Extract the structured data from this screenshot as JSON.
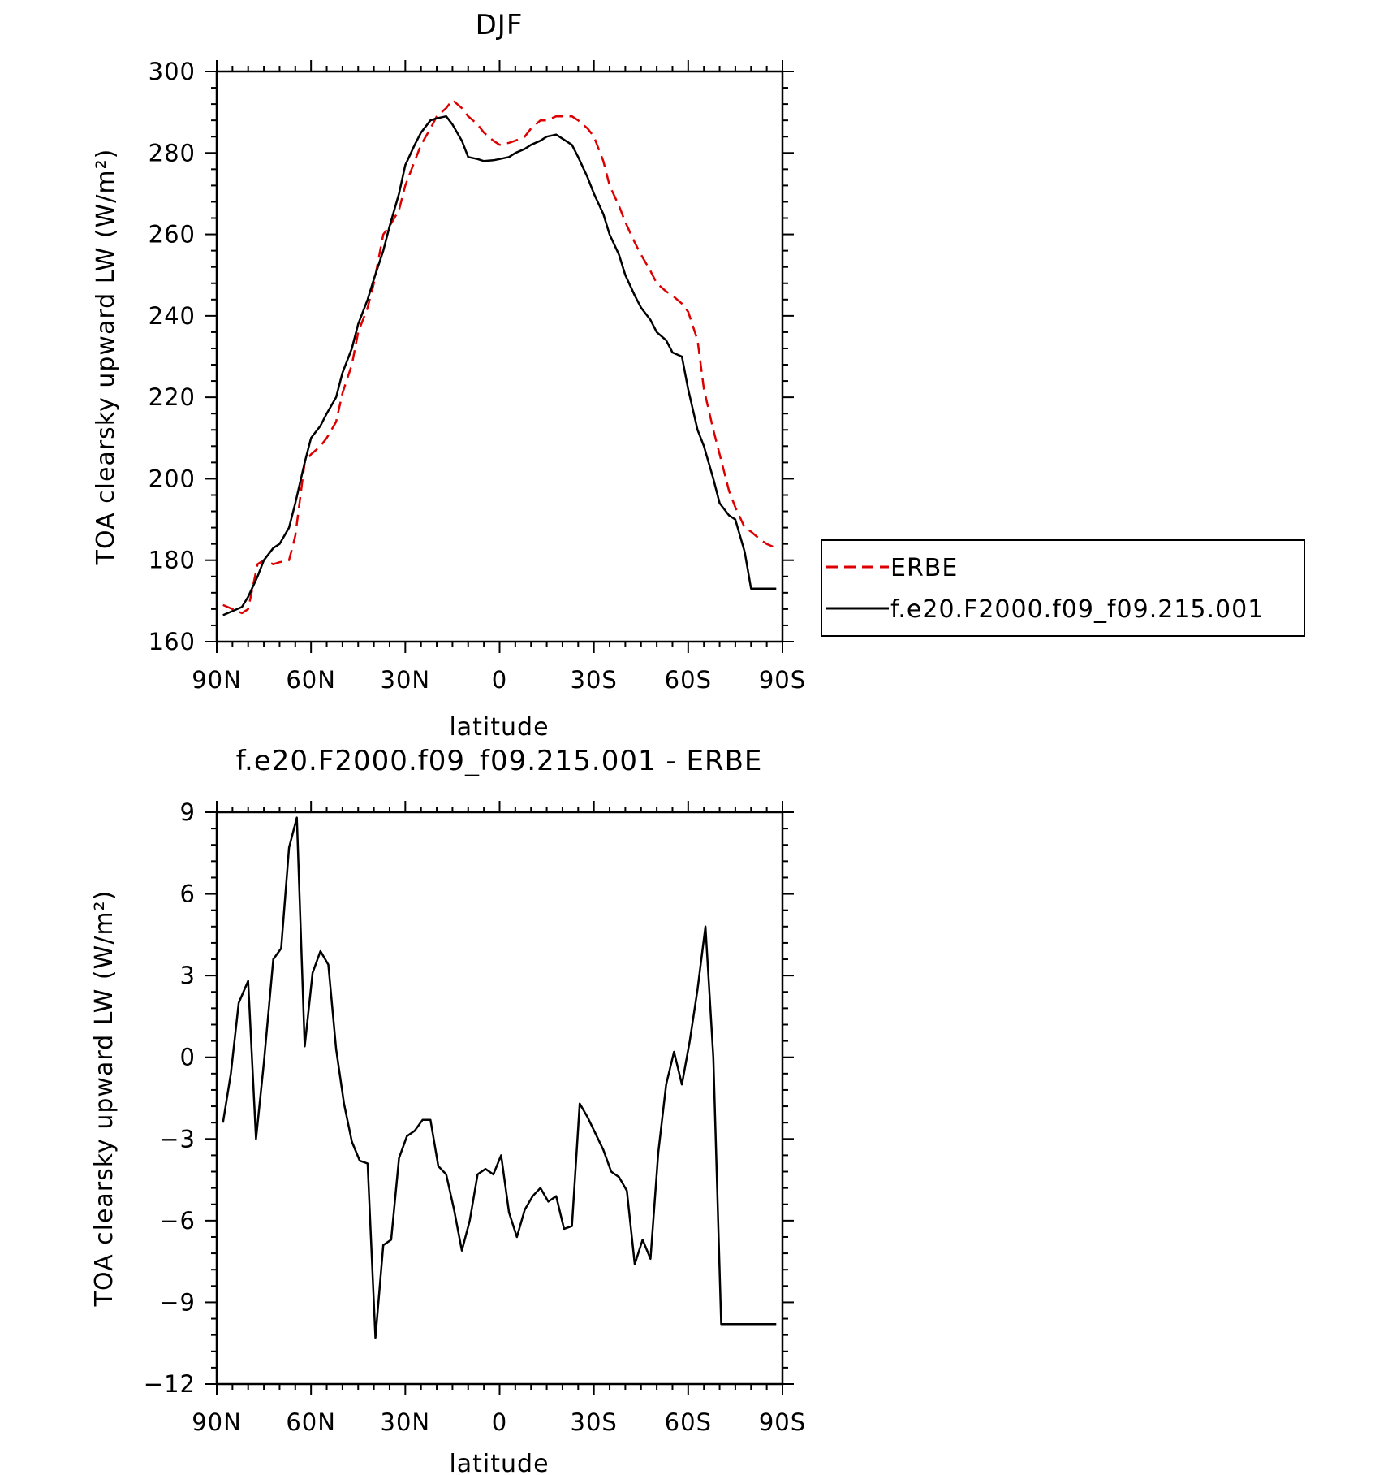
{
  "chart_data": [
    {
      "type": "line",
      "title": "DJF",
      "xlabel": "latitude",
      "ylabel": "TOA clearsky upward LW (W/m²)",
      "xlim": [
        90,
        -90
      ],
      "ylim": [
        160,
        300
      ],
      "xticks": [
        90,
        60,
        30,
        0,
        -30,
        -60,
        -90
      ],
      "xtick_labels": [
        "90N",
        "60N",
        "30N",
        "0",
        "30S",
        "60S",
        "90S"
      ],
      "yticks": [
        160,
        180,
        200,
        220,
        240,
        260,
        280,
        300
      ],
      "ytick_labels": [
        "160",
        "180",
        "200",
        "220",
        "240",
        "260",
        "280",
        "300"
      ],
      "legend_position": "right",
      "series": [
        {
          "name": "ERBE",
          "style": "dashed",
          "color": "#dd0000",
          "x": [
            88,
            85,
            82,
            80,
            77,
            75,
            72,
            70,
            67,
            65,
            62,
            60,
            57,
            55,
            52,
            50,
            47,
            45,
            42,
            40,
            37,
            35,
            32,
            30,
            27,
            25,
            22,
            20,
            17,
            15,
            12,
            10,
            7,
            5,
            2,
            0,
            -3,
            -5,
            -8,
            -10,
            -13,
            -15,
            -18,
            -20,
            -23,
            -25,
            -28,
            -30,
            -33,
            -35,
            -38,
            -40,
            -43,
            -45,
            -48,
            -50,
            -53,
            -55,
            -58,
            -60,
            -63,
            -65,
            -68,
            -70,
            -73,
            -75,
            -78,
            -80,
            -83,
            -85,
            -88
          ],
          "y": [
            169,
            168,
            167,
            168,
            179,
            180,
            179,
            179.5,
            180,
            186,
            204,
            206,
            208,
            210,
            214,
            221,
            228,
            236,
            242,
            248,
            260,
            262,
            266,
            272,
            278,
            282,
            286,
            289,
            291,
            293,
            291,
            289,
            287,
            285,
            283,
            282,
            282.5,
            283,
            284,
            286,
            288,
            288,
            289,
            289,
            289,
            288,
            286,
            284,
            278,
            272,
            267,
            263,
            258,
            255,
            251,
            248,
            246,
            245,
            243,
            241,
            234,
            222,
            212,
            206,
            197,
            193,
            188,
            187,
            185,
            184,
            183
          ]
        },
        {
          "name": "f.e20.F2000.f09_f09.215.001",
          "style": "solid",
          "color": "#000000",
          "x": [
            88,
            85,
            82,
            80,
            77,
            75,
            72,
            70,
            67,
            65,
            62,
            60,
            57,
            55,
            52,
            50,
            47,
            45,
            42,
            40,
            37,
            35,
            32,
            30,
            27,
            25,
            22,
            20,
            17,
            15,
            12,
            10,
            7,
            5,
            2,
            0,
            -3,
            -5,
            -8,
            -10,
            -13,
            -15,
            -18,
            -20,
            -23,
            -25,
            -28,
            -30,
            -33,
            -35,
            -38,
            -40,
            -43,
            -45,
            -48,
            -50,
            -53,
            -55,
            -58,
            -60,
            -63,
            -65,
            -68,
            -70,
            -73,
            -75,
            -78,
            -80,
            -83,
            -85,
            -88
          ],
          "y": [
            166.5,
            167.5,
            168.5,
            171,
            176,
            180,
            183,
            184,
            188,
            194,
            204,
            210,
            213,
            216,
            220,
            226,
            232,
            238,
            244,
            249,
            256,
            262,
            270,
            277,
            282,
            285,
            288,
            288.5,
            289,
            287,
            283,
            279,
            278.5,
            278,
            278.2,
            278.5,
            279,
            280,
            281,
            282,
            283,
            284,
            284.5,
            283.5,
            282,
            279,
            274,
            270,
            265,
            260,
            255,
            250,
            245,
            242,
            239,
            236,
            234,
            231,
            230,
            222,
            212,
            208,
            200,
            194,
            191,
            190,
            182,
            173,
            173,
            173,
            173
          ]
        }
      ]
    },
    {
      "type": "line",
      "title": "f.e20.F2000.f09_f09.215.001 - ERBE",
      "xlabel": "latitude",
      "ylabel": "TOA clearsky upward LW (W/m²)",
      "xlim": [
        90,
        -90
      ],
      "ylim": [
        -12,
        9
      ],
      "xticks": [
        90,
        60,
        30,
        0,
        -30,
        -60,
        -90
      ],
      "xtick_labels": [
        "90N",
        "60N",
        "30N",
        "0",
        "30S",
        "60S",
        "90S"
      ],
      "yticks": [
        -12,
        -9,
        -6,
        -3,
        0,
        3,
        6,
        9
      ],
      "ytick_labels": [
        "−12",
        "−9",
        "−6",
        "−3",
        "0",
        "3",
        "6",
        "9"
      ],
      "series": [
        {
          "style": "solid",
          "color": "#000000",
          "x": [
            88,
            85.5,
            83,
            80,
            77.5,
            75,
            72,
            69.5,
            67,
            64.5,
            62,
            59.5,
            57,
            54.5,
            52,
            49.5,
            47,
            44.5,
            42,
            39.5,
            37,
            34.5,
            32,
            29.5,
            27,
            24.5,
            22,
            19.5,
            17,
            14.5,
            12,
            9.5,
            7,
            4.5,
            2,
            -0.5,
            -3,
            -5.5,
            -8,
            -10.5,
            -13,
            -15.5,
            -18,
            -20.5,
            -23,
            -25.5,
            -28,
            -30.5,
            -33,
            -35.5,
            -38,
            -40.5,
            -43,
            -45.5,
            -48,
            -50.5,
            -53,
            -55.5,
            -58,
            -60.5,
            -63,
            -65.5,
            -68,
            -70.5,
            -73,
            -75.5,
            -78,
            -80.5,
            -83,
            -85.5,
            -88
          ],
          "y": [
            -2.4,
            -0.6,
            2.0,
            2.8,
            -3.0,
            -0.2,
            3.6,
            4.0,
            7.7,
            8.8,
            0.4,
            3.1,
            3.9,
            3.4,
            0.3,
            -1.7,
            -3.1,
            -3.8,
            -3.9,
            -10.3,
            -6.9,
            -6.7,
            -3.7,
            -2.9,
            -2.7,
            -2.3,
            -2.3,
            -4.0,
            -4.3,
            -5.6,
            -7.1,
            -6.0,
            -4.3,
            -4.1,
            -4.3,
            -3.6,
            -5.7,
            -6.6,
            -5.6,
            -5.1,
            -4.8,
            -5.3,
            -5.1,
            -6.3,
            -6.2,
            -1.7,
            -2.2,
            -2.8,
            -3.4,
            -4.2,
            -4.4,
            -4.9,
            -7.6,
            -6.7,
            -7.4,
            -3.5,
            -1.0,
            0.2,
            -1.0,
            0.6,
            2.5,
            4.8,
            0.0,
            -9.8,
            -9.8,
            -9.8,
            -9.8,
            -9.8,
            -9.8,
            -9.8,
            -9.8
          ]
        }
      ]
    }
  ]
}
